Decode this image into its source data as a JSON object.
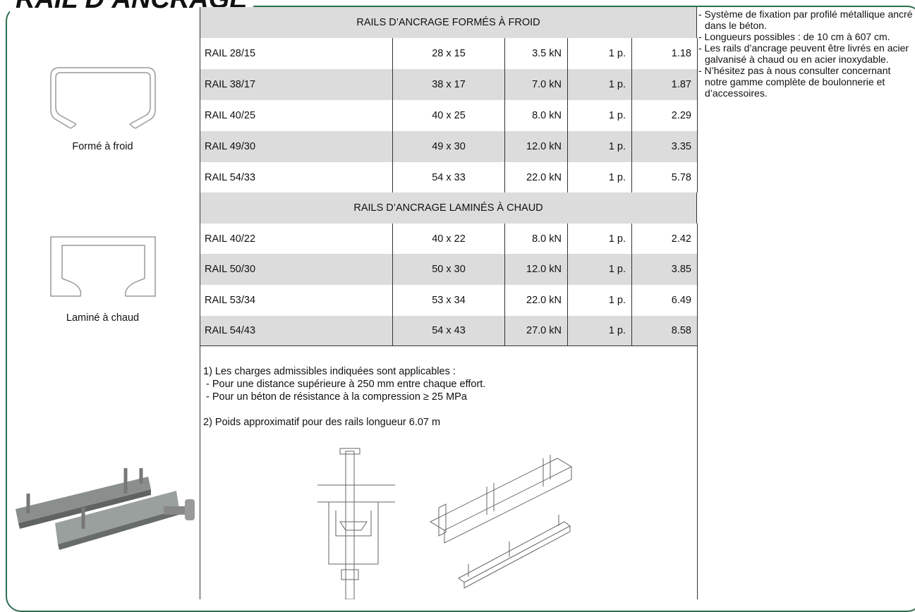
{
  "header": {
    "title": "RAIL D’ANCRAGE"
  },
  "figures": {
    "cold_label": "Formé à froid",
    "hot_label": "Laminé à chaud"
  },
  "table": {
    "sections": [
      {
        "title": "RAILS D’ANCRAGE FORMÉS À FROID",
        "rows": [
          [
            "RAIL 28/15",
            "28 x 15",
            "3.5 kN",
            "1 p.",
            "1.18"
          ],
          [
            "RAIL 38/17",
            "38 x 17",
            "7.0 kN",
            "1 p.",
            "1.87"
          ],
          [
            "RAIL 40/25",
            "40 x 25",
            "8.0 kN",
            "1 p.",
            "2.29"
          ],
          [
            "RAIL 49/30",
            "49 x 30",
            "12.0 kN",
            "1 p.",
            "3.35"
          ],
          [
            "RAIL 54/33",
            "54 x 33",
            "22.0 kN",
            "1 p.",
            "5.78"
          ]
        ]
      },
      {
        "title": "RAILS D’ANCRAGE LAMINÉS À CHAUD",
        "rows": [
          [
            "RAIL 40/22",
            "40 x 22",
            "8.0 kN",
            "1 p.",
            "2.42"
          ],
          [
            "RAIL 50/30",
            "50 x 30",
            "12.0 kN",
            "1 p.",
            "3.85"
          ],
          [
            "RAIL 53/34",
            "53 x 34",
            "22.0 kN",
            "1 p.",
            "6.49"
          ],
          [
            "RAIL 54/43",
            "54 x 43",
            "27.0 kN",
            "1 p.",
            "8.58"
          ]
        ]
      }
    ]
  },
  "footnotes": [
    "1) Les charges admissibles indiquées sont applicables :",
    " - Pour une distance supérieure à 250 mm entre chaque effort.",
    " - Pour un béton de résistance à la compression ≥ 25 MPa",
    "2) Poids approximatif pour des rails longueur 6.07 m"
  ],
  "notes": [
    "- Système de fixation par profilé métallique ancré dans le béton.",
    "- Longueurs possibles : de 10 cm à 607 cm.",
    "- Les rails d’ancrage peuvent être livrés en acier galvanisé à chaud ou en acier inoxydable.",
    "- N’hésitez pas à nous consulter concernant notre gamme complète de boulonnerie et d’accessoires."
  ]
}
